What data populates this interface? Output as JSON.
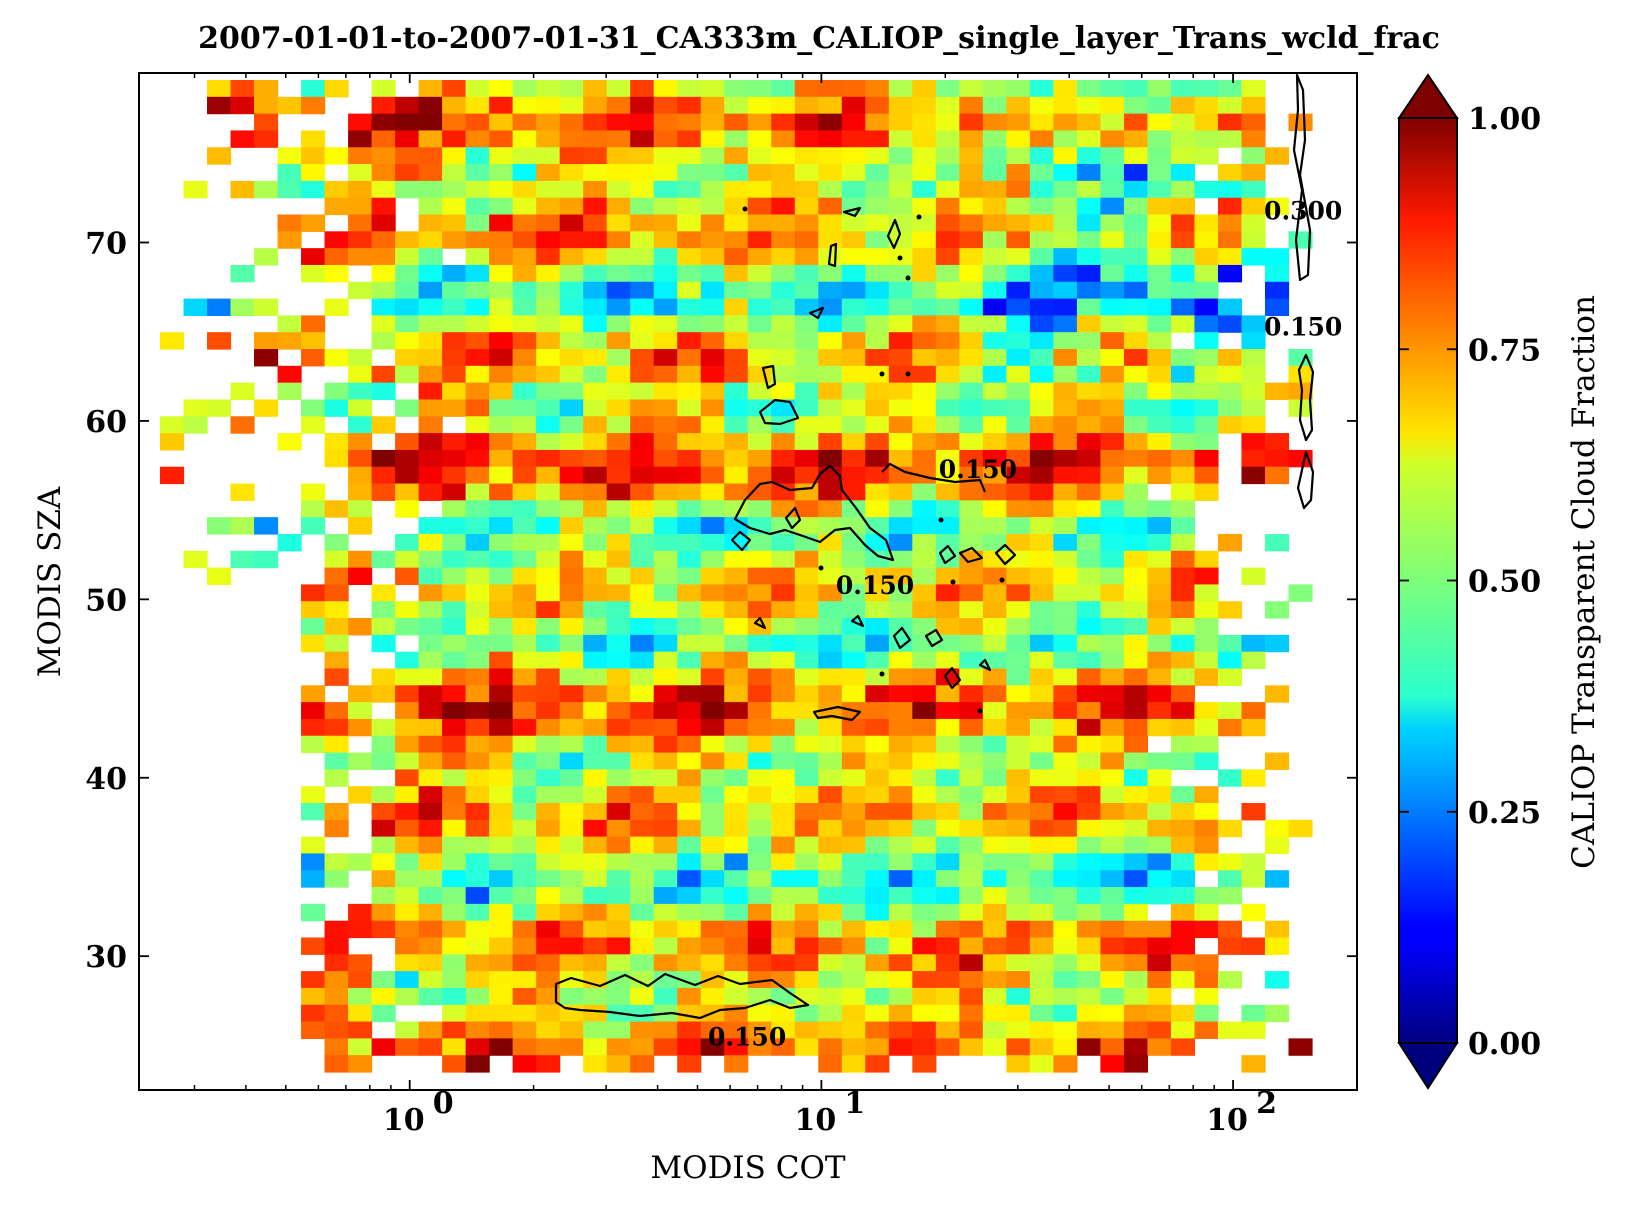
{
  "chart_data": {
    "type": "heatmap",
    "title": "2007-01-01-to-2007-01-31_CA333m_CALIOP_single_layer_Trans_wcld_frac",
    "xlabel": "MODIS COT",
    "ylabel": "MODIS SZA",
    "x_scale": "log",
    "xlim": [
      0.22,
      200
    ],
    "ylim": [
      22.5,
      79.5
    ],
    "x_ticks": [
      {
        "value": 1,
        "base": "10",
        "exp": "0"
      },
      {
        "value": 10,
        "base": "10",
        "exp": "1"
      },
      {
        "value": 100,
        "base": "10",
        "exp": "2"
      }
    ],
    "y_ticks": [
      {
        "value": 30,
        "label": "30"
      },
      {
        "value": 40,
        "label": "40"
      },
      {
        "value": 50,
        "label": "50"
      },
      {
        "value": 60,
        "label": "60"
      },
      {
        "value": 70,
        "label": "70"
      }
    ],
    "colorbar": {
      "label": "CALIOP Transparent Cloud Fraction",
      "colormap": "jet",
      "range": [
        0.0,
        1.0
      ],
      "extend": "both",
      "ticks": [
        {
          "value": 0.0,
          "label": "0.00"
        },
        {
          "value": 0.25,
          "label": "0.25"
        },
        {
          "value": 0.5,
          "label": "0.50"
        },
        {
          "value": 0.75,
          "label": "0.75"
        },
        {
          "value": 1.0,
          "label": "1.00"
        }
      ]
    },
    "field_description_note": null,
    "contours": {
      "color": "#000000",
      "levels": [
        0.15,
        0.3
      ],
      "labels": [
        {
          "text": "0.150",
          "x": 24.0,
          "y": 56.8
        },
        {
          "text": "0.150",
          "x": 13.5,
          "y": 50.3
        },
        {
          "text": "0.150",
          "x": 6.6,
          "y": 25.0
        },
        {
          "text": "0.300",
          "x": 148,
          "y": 71.3
        },
        {
          "text": "0.150",
          "x": 148,
          "y": 64.8
        }
      ]
    }
  }
}
